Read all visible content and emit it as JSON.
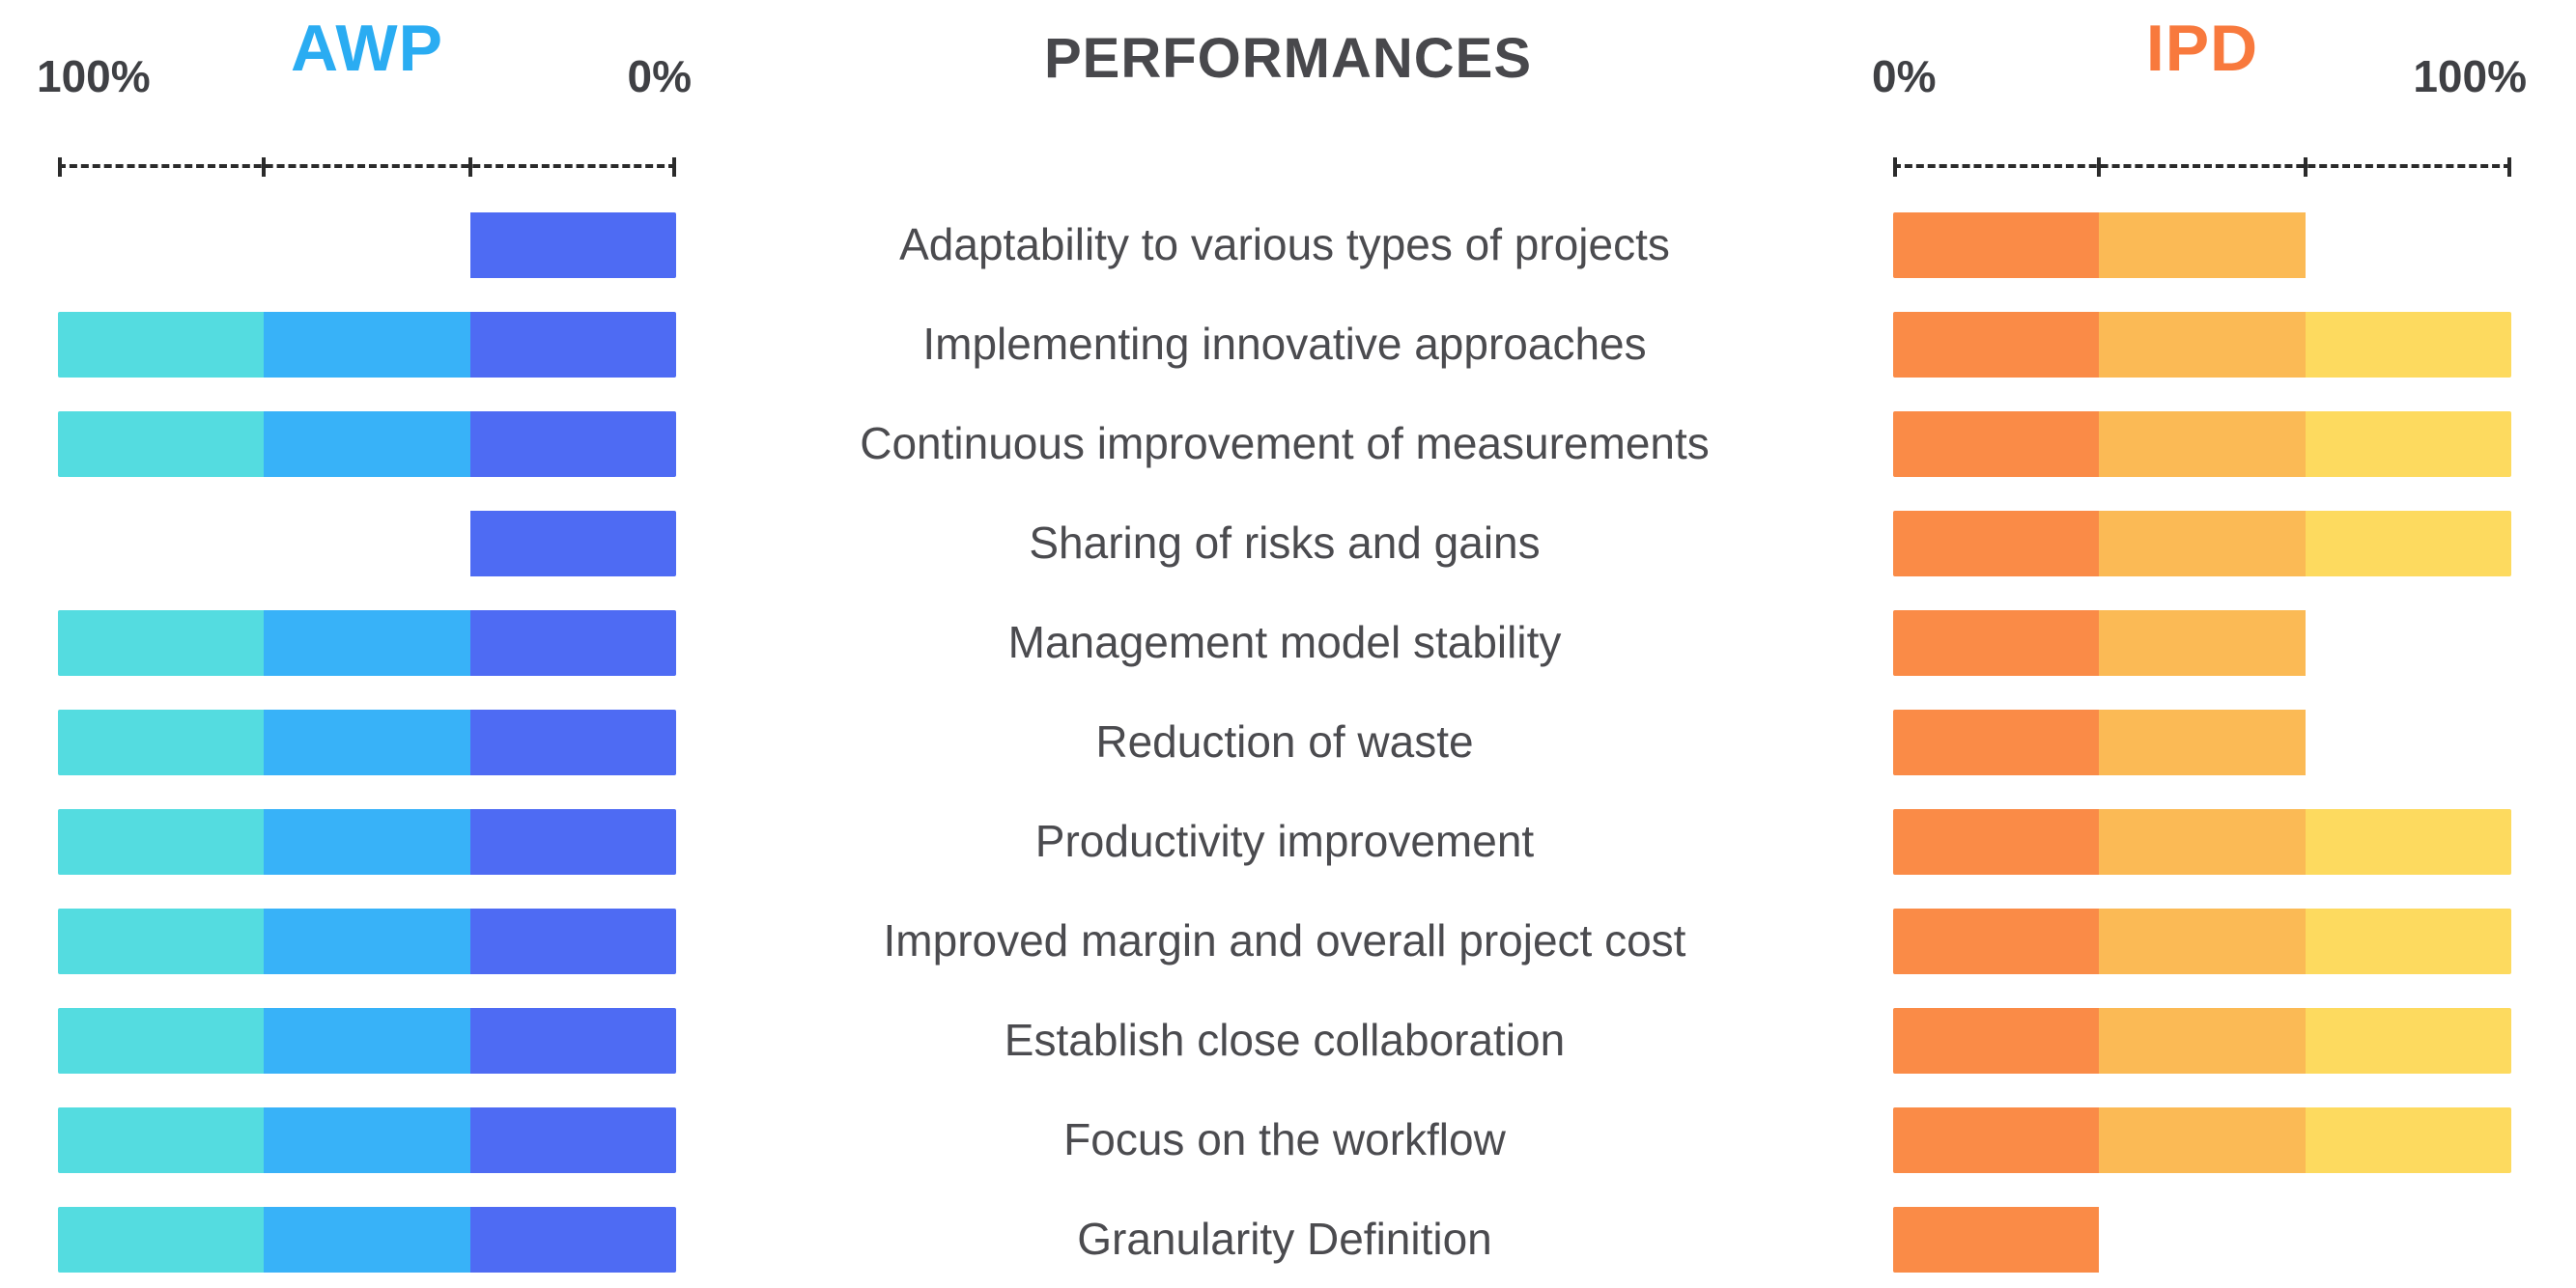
{
  "header": {
    "left_title": "AWP",
    "center_title": "PERFORMANCES",
    "right_title": "IPD",
    "left_axis": {
      "start_label": "100%",
      "end_label": "0%"
    },
    "right_axis": {
      "start_label": "0%",
      "end_label": "100%"
    }
  },
  "colors": {
    "awp_title": "#2AACF2",
    "ipd_title": "#F8793D",
    "heading_text": "#48484C",
    "label_text": "#4B4B4F",
    "axis": "#2B2B2B",
    "awp_segments": [
      "#54DCE0",
      "#38B2F8",
      "#4E6BF3"
    ],
    "ipd_segments": [
      "#FA8B47",
      "#FBBA55",
      "#FDDA5F"
    ]
  },
  "rows": [
    {
      "label": "Adaptability to various types of projects",
      "awp_thirds": 1,
      "ipd_thirds": 2
    },
    {
      "label": "Implementing innovative approaches",
      "awp_thirds": 3,
      "ipd_thirds": 3
    },
    {
      "label": "Continuous improvement of measurements",
      "awp_thirds": 3,
      "ipd_thirds": 3
    },
    {
      "label": "Sharing of risks and gains",
      "awp_thirds": 1,
      "ipd_thirds": 3
    },
    {
      "label": "Management model stability",
      "awp_thirds": 3,
      "ipd_thirds": 2
    },
    {
      "label": "Reduction of waste",
      "awp_thirds": 3,
      "ipd_thirds": 2
    },
    {
      "label": "Productivity improvement",
      "awp_thirds": 3,
      "ipd_thirds": 3
    },
    {
      "label": "Improved margin and overall project cost",
      "awp_thirds": 3,
      "ipd_thirds": 3
    },
    {
      "label": "Establish close collaboration",
      "awp_thirds": 3,
      "ipd_thirds": 3
    },
    {
      "label": "Focus on the workflow",
      "awp_thirds": 3,
      "ipd_thirds": 3
    },
    {
      "label": "Granularity Definition",
      "awp_thirds": 3,
      "ipd_thirds": 1
    }
  ],
  "chart_data": {
    "type": "bar",
    "orientation": "horizontal",
    "title": "PERFORMANCES",
    "categories": [
      "Adaptability to various types of projects",
      "Implementing innovative approaches",
      "Continuous improvement of measurements",
      "Sharing of risks and gains",
      "Management model stability",
      "Reduction of waste",
      "Productivity improvement",
      "Improved margin and overall project cost",
      "Establish close collaboration",
      "Focus on the workflow",
      "Granularity Definition"
    ],
    "series": [
      {
        "name": "AWP",
        "values_pct": [
          33,
          100,
          100,
          33,
          100,
          100,
          100,
          100,
          100,
          100,
          100
        ],
        "axis_direction": "right-to-left (100% at left edge, 0% at right edge)",
        "segment_colors": [
          "#54DCE0",
          "#38B2F8",
          "#4E6BF3"
        ]
      },
      {
        "name": "IPD",
        "values_pct": [
          67,
          100,
          100,
          100,
          67,
          67,
          100,
          100,
          100,
          100,
          33
        ],
        "axis_direction": "left-to-right (0% at left edge, 100% at right edge)",
        "segment_colors": [
          "#FA8B47",
          "#FBBA55",
          "#FDDA5F"
        ]
      }
    ],
    "xlim": [
      0,
      100
    ],
    "units": "%",
    "gridlines": false,
    "axis_style": "dashed line with ticks at 0, 33, 67, 100"
  }
}
